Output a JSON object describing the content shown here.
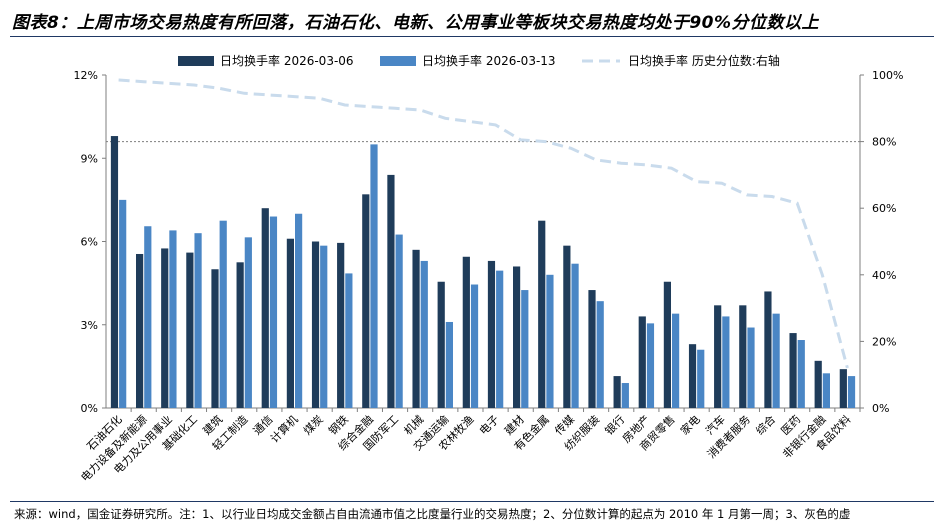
{
  "title": "图表8：上周市场交易热度有所回落，石油石化、电新、公用事业等板块交易热度均处于90%分位数以上",
  "footer": "来源：wind，国金证券研究所。注：1、以行业日均成交金额占自由流通市值之比度量行业的交易热度；2、分位数计算的起点为 2010 年 1 月第一周；3、灰色的虚",
  "colors": {
    "series1": "#1f3c5a",
    "series2": "#4a86c5",
    "series3": "#c9dbec",
    "axis": "#7f7f7f",
    "refline": "#7f7f7f",
    "title_rule": "#1f3864"
  },
  "chart_data": {
    "type": "bar",
    "categories": [
      "石油石化",
      "电力设备及新能源",
      "电力及公用事业",
      "基础化工",
      "建筑",
      "轻工制造",
      "通信",
      "计算机",
      "煤炭",
      "钢铁",
      "综合金融",
      "国防军工",
      "机械",
      "交通运输",
      "农林牧渔",
      "电子",
      "建材",
      "有色金属",
      "传媒",
      "纺织服装",
      "银行",
      "房地产",
      "商贸零售",
      "家电",
      "汽车",
      "消费者服务",
      "综合",
      "医药",
      "非银行金融",
      "食品饮料"
    ],
    "series": [
      {
        "name": "日均换手率 2026-03-06",
        "axis": "left",
        "kind": "bar",
        "values": [
          9.8,
          5.55,
          5.75,
          5.6,
          5.0,
          5.25,
          7.2,
          6.1,
          6.0,
          5.95,
          7.7,
          8.4,
          5.7,
          4.55,
          5.45,
          5.3,
          5.1,
          6.75,
          5.85,
          4.25,
          1.15,
          3.3,
          4.55,
          2.3,
          3.7,
          3.7,
          4.2,
          2.7,
          1.7,
          1.4
        ]
      },
      {
        "name": "日均换手率 2026-03-13",
        "axis": "left",
        "kind": "bar",
        "values": [
          7.5,
          6.55,
          6.4,
          6.3,
          6.75,
          6.15,
          6.9,
          7.0,
          5.85,
          4.85,
          9.5,
          6.25,
          5.3,
          3.1,
          4.45,
          4.95,
          4.25,
          4.8,
          5.2,
          3.85,
          0.9,
          3.05,
          3.4,
          2.1,
          3.3,
          2.9,
          3.4,
          2.45,
          1.25,
          1.15
        ]
      },
      {
        "name": "日均换手率 历史分位数:右轴",
        "axis": "right",
        "kind": "line",
        "values": [
          98.5,
          98,
          97.5,
          97,
          96,
          94.5,
          94,
          93.5,
          93,
          91,
          90.5,
          90,
          89.5,
          87,
          86,
          85,
          80.5,
          80,
          78,
          74.5,
          73.5,
          73,
          72,
          68,
          67.5,
          64,
          63.5,
          61.5,
          40,
          12
        ]
      }
    ],
    "left_axis": {
      "min": 0,
      "max": 12,
      "ticks": [
        0,
        3,
        6,
        9,
        12
      ],
      "tick_labels": [
        "0%",
        "3%",
        "6%",
        "9%",
        "12%"
      ]
    },
    "right_axis": {
      "min": 0,
      "max": 100,
      "ticks": [
        0,
        20,
        40,
        60,
        80,
        100
      ],
      "tick_labels": [
        "0%",
        "20%",
        "40%",
        "60%",
        "80%",
        "100%"
      ]
    },
    "reference_line": {
      "axis": "right",
      "value": 80
    },
    "legend": "top"
  }
}
